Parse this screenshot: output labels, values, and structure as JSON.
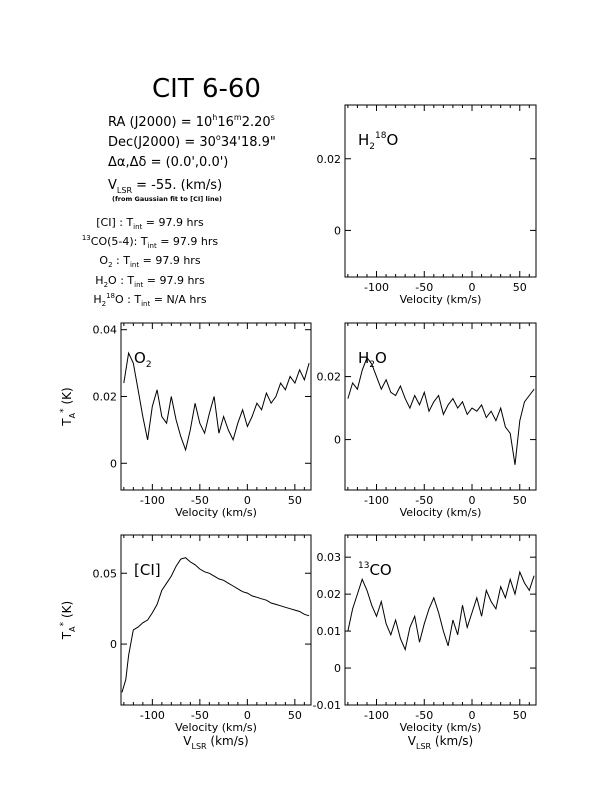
{
  "header": {
    "source": "CIT 6-60",
    "ra_label": "RA (J2000) = ",
    "ra_h": "10",
    "ra_h_unit": "h",
    "ra_m": "16",
    "ra_m_unit": "m",
    "ra_s": "2.20",
    "ra_s_unit": "s",
    "dec_label": "Dec(J2000) = ",
    "dec_deg": "30",
    "dec_deg_unit": "o",
    "dec_rest": "34'18.9\"",
    "offset": "Δα,Δδ = (0.0',0.0')",
    "vlsr_label": "V",
    "vlsr_sub": "LSR",
    "vlsr_value": " = -55. (km/s)",
    "vlsr_note": "(from Gaussian fit to [CI] line)",
    "tint_lines": [
      {
        "pre": "",
        "sup": "",
        "mol": "[CI]",
        "mol_sub": "",
        "mol_sup": "",
        "post": " : ",
        "t": "T",
        "t_sub": "int",
        "value": " = 97.9 hrs"
      },
      {
        "pre": "",
        "sup": "13",
        "mol": "CO(5-4)",
        "mol_sub": "",
        "mol_sup": "",
        "post": ": ",
        "t": "T",
        "t_sub": "int",
        "value": " = 97.9 hrs"
      },
      {
        "pre": "",
        "sup": "",
        "mol": "O",
        "mol_sub": "2",
        "mol_sup": "",
        "post": " : ",
        "t": "T",
        "t_sub": "int",
        "value": " = 97.9 hrs"
      },
      {
        "pre": "",
        "sup": "",
        "mol": "H",
        "mol_sub": "2",
        "mol_sup": "",
        "post": "O : ",
        "t": "T",
        "t_sub": "int",
        "value": " = 97.9 hrs"
      },
      {
        "pre": "",
        "sup": "",
        "mol": "H",
        "mol_sub": "2",
        "mol_sup": "18",
        "post": "O : ",
        "t": "T",
        "t_sub": "int",
        "value": " = N/A hrs"
      }
    ]
  },
  "chart_data": [
    {
      "id": "h2o18",
      "type": "line",
      "label": {
        "main": "H",
        "sub": "2",
        "sup": "18",
        "tail": "O"
      },
      "xlim": [
        -133,
        67
      ],
      "ylim": [
        -0.013,
        0.035
      ],
      "xticks": [
        -100,
        -50,
        0,
        50
      ],
      "xticklabels": [
        "-100",
        "-50",
        "0",
        "50"
      ],
      "yticks": [
        0,
        0.02
      ],
      "yticklabels": [
        "0",
        "0.02"
      ],
      "xlabel": "Velocity (km/s)",
      "xlabel2": "",
      "ylabel": "",
      "x": [],
      "y": []
    },
    {
      "id": "o2",
      "type": "line",
      "label": {
        "main": "O",
        "sub": "2",
        "sup": "",
        "tail": ""
      },
      "xlim": [
        -133,
        67
      ],
      "ylim": [
        -0.008,
        0.042
      ],
      "xticks": [
        -100,
        -50,
        0,
        50
      ],
      "xticklabels": [
        "-100",
        "-50",
        "0",
        "50"
      ],
      "yticks": [
        0,
        0.02,
        0.04
      ],
      "yticklabels": [
        "0",
        "0.02",
        "0.04"
      ],
      "xlabel": "Velocity (km/s)",
      "xlabel2": "",
      "ylabel": "TA* (K)",
      "x": [
        -130,
        -125,
        -120,
        -115,
        -110,
        -105,
        -100,
        -95,
        -90,
        -85,
        -80,
        -75,
        -70,
        -65,
        -60,
        -55,
        -50,
        -45,
        -40,
        -35,
        -30,
        -25,
        -20,
        -15,
        -10,
        -5,
        0,
        5,
        10,
        15,
        20,
        25,
        30,
        35,
        40,
        45,
        50,
        55,
        60,
        65
      ],
      "y": [
        0.024,
        0.033,
        0.03,
        0.022,
        0.014,
        0.007,
        0.017,
        0.022,
        0.014,
        0.012,
        0.02,
        0.013,
        0.008,
        0.004,
        0.01,
        0.018,
        0.012,
        0.009,
        0.015,
        0.02,
        0.009,
        0.014,
        0.01,
        0.007,
        0.012,
        0.016,
        0.011,
        0.014,
        0.018,
        0.016,
        0.021,
        0.018,
        0.02,
        0.024,
        0.022,
        0.026,
        0.024,
        0.028,
        0.025,
        0.03
      ]
    },
    {
      "id": "h2o",
      "type": "line",
      "label": {
        "main": "H",
        "sub": "2",
        "sup": "",
        "tail": "O"
      },
      "xlim": [
        -133,
        67
      ],
      "ylim": [
        -0.016,
        0.037
      ],
      "xticks": [
        -100,
        -50,
        0,
        50
      ],
      "xticklabels": [
        "-100",
        "-50",
        "0",
        "50"
      ],
      "yticks": [
        0,
        0.02
      ],
      "yticklabels": [
        "0",
        "0.02"
      ],
      "xlabel": "Velocity (km/s)",
      "xlabel2": "",
      "ylabel": "",
      "x": [
        -130,
        -125,
        -120,
        -115,
        -110,
        -105,
        -100,
        -95,
        -90,
        -85,
        -80,
        -75,
        -70,
        -65,
        -60,
        -55,
        -50,
        -45,
        -40,
        -35,
        -30,
        -25,
        -20,
        -15,
        -10,
        -5,
        0,
        5,
        10,
        15,
        20,
        25,
        30,
        35,
        40,
        45,
        50,
        55,
        60,
        65
      ],
      "y": [
        0.013,
        0.018,
        0.016,
        0.022,
        0.026,
        0.024,
        0.02,
        0.016,
        0.019,
        0.015,
        0.014,
        0.017,
        0.013,
        0.01,
        0.014,
        0.011,
        0.015,
        0.009,
        0.012,
        0.014,
        0.008,
        0.011,
        0.013,
        0.01,
        0.012,
        0.008,
        0.01,
        0.009,
        0.011,
        0.007,
        0.009,
        0.006,
        0.01,
        0.004,
        0.002,
        -0.008,
        0.006,
        0.012,
        0.014,
        0.016
      ]
    },
    {
      "id": "ci",
      "type": "line",
      "label": {
        "main": "[CI]",
        "sub": "",
        "sup": "",
        "tail": ""
      },
      "xlim": [
        -133,
        67
      ],
      "ylim": [
        -0.043,
        0.077
      ],
      "xticks": [
        -100,
        -50,
        0,
        50
      ],
      "xticklabels": [
        "-100",
        "-50",
        "0",
        "50"
      ],
      "yticks": [
        0,
        0.05
      ],
      "yticklabels": [
        "0",
        "0.05"
      ],
      "xlabel": "Velocity (km/s)",
      "xlabel2": "VLSR (km/s)",
      "ylabel": "TA* (K)",
      "x": [
        -132,
        -128,
        -125,
        -120,
        -115,
        -110,
        -105,
        -100,
        -95,
        -90,
        -85,
        -80,
        -75,
        -70,
        -65,
        -60,
        -55,
        -50,
        -45,
        -40,
        -35,
        -30,
        -25,
        -20,
        -15,
        -10,
        -5,
        0,
        5,
        10,
        15,
        20,
        25,
        30,
        35,
        40,
        45,
        50,
        55,
        60,
        65
      ],
      "y": [
        -0.034,
        -0.025,
        -0.008,
        0.01,
        0.012,
        0.015,
        0.017,
        0.022,
        0.028,
        0.038,
        0.043,
        0.048,
        0.055,
        0.06,
        0.061,
        0.058,
        0.056,
        0.053,
        0.051,
        0.05,
        0.048,
        0.046,
        0.045,
        0.043,
        0.041,
        0.039,
        0.037,
        0.036,
        0.034,
        0.033,
        0.032,
        0.031,
        0.029,
        0.028,
        0.027,
        0.026,
        0.025,
        0.024,
        0.023,
        0.021,
        0.02
      ]
    },
    {
      "id": "13co",
      "type": "line",
      "label": {
        "main": "",
        "sub": "",
        "sup": "13",
        "tail": "CO"
      },
      "xlim": [
        -133,
        67
      ],
      "ylim": [
        -0.01,
        0.036
      ],
      "xticks": [
        -100,
        -50,
        0,
        50
      ],
      "xticklabels": [
        "-100",
        "-50",
        "0",
        "50"
      ],
      "yticks": [
        -0.01,
        0,
        0.01,
        0.02,
        0.03
      ],
      "yticklabels": [
        "-0.01",
        "0",
        "0.01",
        "0.02",
        "0.03"
      ],
      "xlabel": "Velocity (km/s)",
      "xlabel2": "VLSR (km/s)",
      "ylabel": "",
      "x": [
        -130,
        -125,
        -120,
        -115,
        -110,
        -105,
        -100,
        -95,
        -90,
        -85,
        -80,
        -75,
        -70,
        -65,
        -60,
        -55,
        -50,
        -45,
        -40,
        -35,
        -30,
        -25,
        -20,
        -15,
        -10,
        -5,
        0,
        5,
        10,
        15,
        20,
        25,
        30,
        35,
        40,
        45,
        50,
        55,
        60,
        65
      ],
      "y": [
        0.01,
        0.016,
        0.02,
        0.024,
        0.021,
        0.017,
        0.014,
        0.018,
        0.012,
        0.009,
        0.013,
        0.008,
        0.005,
        0.011,
        0.014,
        0.007,
        0.012,
        0.016,
        0.019,
        0.015,
        0.01,
        0.006,
        0.013,
        0.009,
        0.017,
        0.011,
        0.015,
        0.019,
        0.014,
        0.021,
        0.018,
        0.016,
        0.022,
        0.019,
        0.024,
        0.02,
        0.026,
        0.023,
        0.021,
        0.025
      ]
    }
  ]
}
